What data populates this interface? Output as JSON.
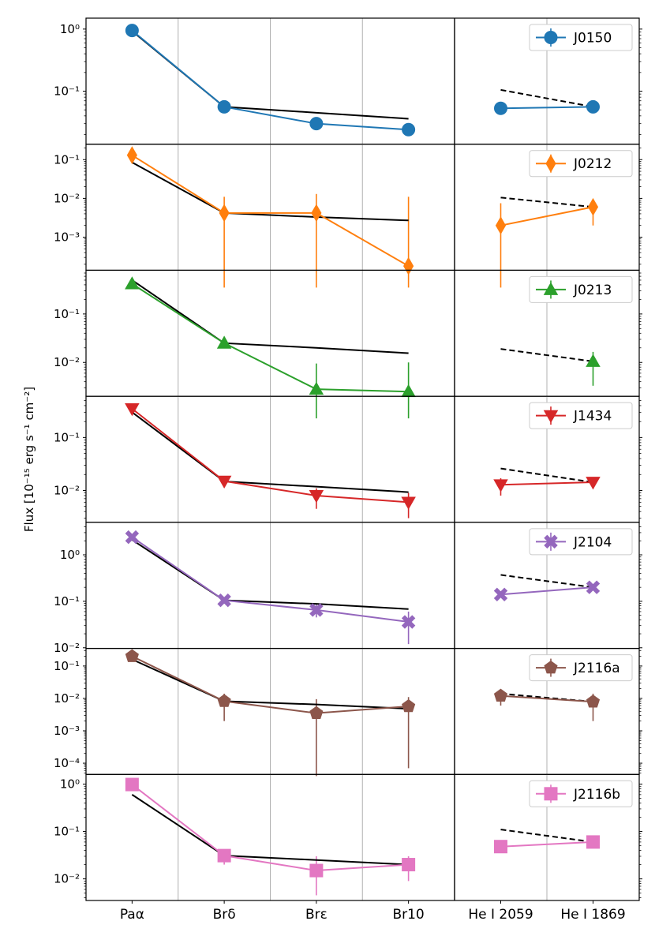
{
  "chart_data": {
    "type": "line",
    "ylabel": "Flux [10⁻¹⁵ erg s⁻¹ cm⁻²]",
    "yscale": "log",
    "x_lines": [
      "Paα",
      "Brδ",
      "Brε",
      "Br10"
    ],
    "x_helium": [
      "He I 2059",
      "He I 1869"
    ],
    "panels": [
      {
        "name": "J0150",
        "color": "#1f77b4",
        "marker": "circle",
        "ylim": [
          0.014,
          1.5
        ],
        "yticks": [
          {
            "v": 1,
            "label": "10⁰"
          },
          {
            "v": 0.1,
            "label": "10⁻¹"
          }
        ],
        "values": [
          0.95,
          0.056,
          0.03,
          0.024
        ],
        "errors": [
          null,
          null,
          null,
          null
        ],
        "model": [
          0.93,
          0.056,
          0.045,
          0.036
        ],
        "he_values": [
          0.053,
          0.056
        ],
        "he_errors": [
          null,
          null
        ],
        "he_model": [
          0.105,
          0.056
        ]
      },
      {
        "name": "J0212",
        "color": "#ff7f0e",
        "marker": "diamond",
        "ylim": [
          0.00014,
          0.25
        ],
        "yticks": [
          {
            "v": 0.1,
            "label": "10⁻¹"
          },
          {
            "v": 0.01,
            "label": "10⁻²"
          },
          {
            "v": 0.001,
            "label": "10⁻³"
          }
        ],
        "values": [
          0.13,
          0.0042,
          0.0042,
          0.00018
        ],
        "errors": [
          [
            0.085,
            0.2
          ],
          [
            5e-05,
            0.011
          ],
          [
            5e-05,
            0.013
          ],
          [
            5e-05,
            0.011
          ]
        ],
        "model": [
          0.085,
          0.0042,
          0.0033,
          0.0027
        ],
        "he_values": [
          0.002,
          0.006
        ],
        "he_errors": [
          [
            5e-05,
            0.0075
          ],
          [
            0.002,
            0.0085
          ]
        ],
        "he_model": [
          0.0105,
          0.006
        ]
      },
      {
        "name": "J0213",
        "color": "#2ca02c",
        "marker": "triangle-up",
        "ylim": [
          0.002,
          0.8
        ],
        "yticks": [
          {
            "v": 0.1,
            "label": "10⁻¹"
          },
          {
            "v": 0.01,
            "label": "10⁻²"
          }
        ],
        "values": [
          0.42,
          0.025,
          0.0028,
          0.0025
        ],
        "errors": [
          null,
          null,
          [
            0.0007,
            0.0095
          ],
          [
            0.0007,
            0.01
          ]
        ],
        "model": [
          0.5,
          0.025,
          0.02,
          0.0155
        ],
        "he_values": [
          null,
          0.0105
        ],
        "he_errors": [
          null,
          [
            0.0033,
            0.0165
          ]
        ],
        "he_model": [
          0.019,
          0.0105
        ]
      },
      {
        "name": "J1434",
        "color": "#d62728",
        "marker": "triangle-down",
        "ylim": [
          0.0025,
          0.6
        ],
        "yticks": [
          {
            "v": 0.1,
            "label": "10⁻¹"
          },
          {
            "v": 0.01,
            "label": "10⁻²"
          }
        ],
        "values": [
          0.35,
          0.015,
          0.008,
          0.006
        ],
        "errors": [
          null,
          null,
          [
            0.0045,
            0.011
          ],
          [
            0.003,
            0.009
          ]
        ],
        "model": [
          0.3,
          0.0148,
          0.0118,
          0.0093
        ],
        "he_values": [
          0.0128,
          0.0143
        ],
        "he_errors": [
          [
            0.008,
            0.017
          ],
          null
        ],
        "he_model": [
          0.026,
          0.0143
        ]
      },
      {
        "name": "J2104",
        "color": "#9467bd",
        "marker": "x-filled",
        "ylim": [
          0.0097,
          5.0
        ],
        "yticks": [
          {
            "v": 1,
            "label": "10⁰"
          },
          {
            "v": 0.1,
            "label": "10⁻¹"
          },
          {
            "v": 0.01,
            "label": "10⁻²"
          }
        ],
        "values": [
          2.4,
          0.105,
          0.065,
          0.036
        ],
        "errors": [
          null,
          null,
          [
            0.045,
            0.085
          ],
          [
            0.012,
            0.06
          ]
        ],
        "model": [
          2.1,
          0.105,
          0.088,
          0.068
        ],
        "he_values": [
          0.14,
          0.2
        ],
        "he_errors": [
          null,
          null
        ],
        "he_model": [
          0.37,
          0.2
        ]
      },
      {
        "name": "J2116a",
        "color": "#8c564b",
        "marker": "pentagon",
        "ylim": [
          4.5e-05,
          0.35
        ],
        "yticks": [
          {
            "v": 0.1,
            "label": "10⁻¹"
          },
          {
            "v": 0.01,
            "label": "10⁻²"
          },
          {
            "v": 0.001,
            "label": "10⁻³"
          },
          {
            "v": 0.0001,
            "label": "10⁻⁴"
          }
        ],
        "values": [
          0.2,
          0.0082,
          0.0035,
          0.0057
        ],
        "errors": [
          null,
          [
            0.002,
            0.014
          ],
          [
            4e-05,
            0.0095
          ],
          [
            7e-05,
            0.011
          ]
        ],
        "model": [
          0.16,
          0.0082,
          0.0065,
          0.0048
        ],
        "he_values": [
          0.012,
          0.0079
        ],
        "he_errors": [
          [
            0.006,
            0.016
          ],
          [
            0.002,
            0.014
          ]
        ],
        "he_model": [
          0.014,
          0.0079
        ]
      },
      {
        "name": "J2116b",
        "color": "#e377c2",
        "marker": "square",
        "ylim": [
          0.0035,
          1.6
        ],
        "yticks": [
          {
            "v": 1,
            "label": "10⁰"
          },
          {
            "v": 0.1,
            "label": "10⁻¹"
          },
          {
            "v": 0.01,
            "label": "10⁻²"
          }
        ],
        "values": [
          0.98,
          0.031,
          0.015,
          0.02
        ],
        "errors": [
          null,
          [
            0.02,
            0.04
          ],
          [
            0.0045,
            0.03
          ],
          [
            0.009,
            0.03
          ]
        ],
        "model": [
          0.6,
          0.031,
          0.025,
          0.02
        ],
        "he_values": [
          0.048,
          0.06
        ],
        "he_errors": [
          null,
          null
        ],
        "he_model": [
          0.11,
          0.06
        ]
      }
    ]
  }
}
